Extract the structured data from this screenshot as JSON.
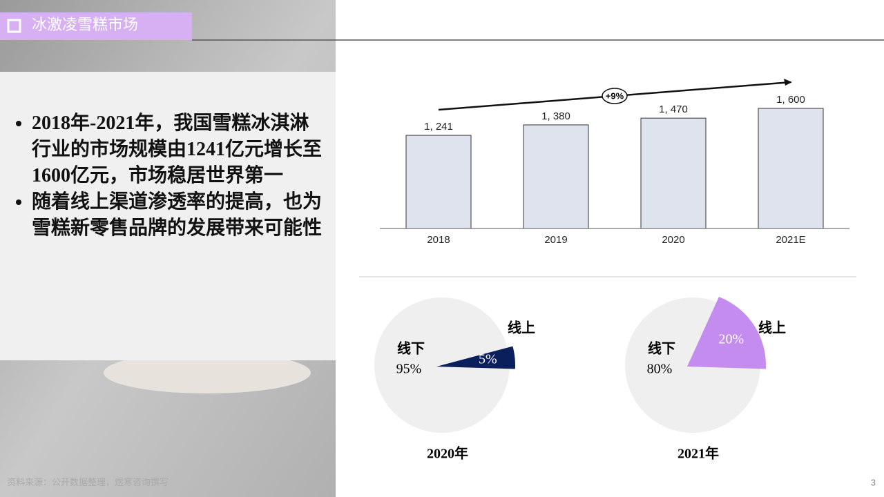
{
  "header": {
    "title": "冰激凌雪糕市场"
  },
  "bullets": [
    "2018年-2021年，我国雪糕冰淇淋行业的市场规模由1241亿元增长至1600亿元，市场稳居世界第一",
    "随着线上渠道渗透率的提高，也为雪糕新零售品牌的发展带来可能性"
  ],
  "chart_data": [
    {
      "type": "bar",
      "categories": [
        "2018",
        "2019",
        "2020",
        "2021E"
      ],
      "values": [
        1241,
        1380,
        1470,
        1600
      ],
      "value_labels": [
        "1, 241",
        "1, 380",
        "1, 470",
        "1, 600"
      ],
      "color": "#dfe3ee",
      "annotation": "+9%"
    },
    {
      "type": "pie",
      "title": "2020年",
      "categories": [
        "线下",
        "线上"
      ],
      "values": [
        95,
        5
      ],
      "value_labels": [
        "95%",
        "5%"
      ],
      "colors": [
        "#efefef",
        "#0b1f5c"
      ]
    },
    {
      "type": "pie",
      "title": "2021年",
      "categories": [
        "线下",
        "线上"
      ],
      "values": [
        80,
        20
      ],
      "value_labels": [
        "80%",
        "20%"
      ],
      "colors": [
        "#efefef",
        "#c58cf0"
      ]
    }
  ],
  "footer": {
    "source": "资料来源：公开数据整理，煜寒咨询撰写",
    "page": "3"
  }
}
